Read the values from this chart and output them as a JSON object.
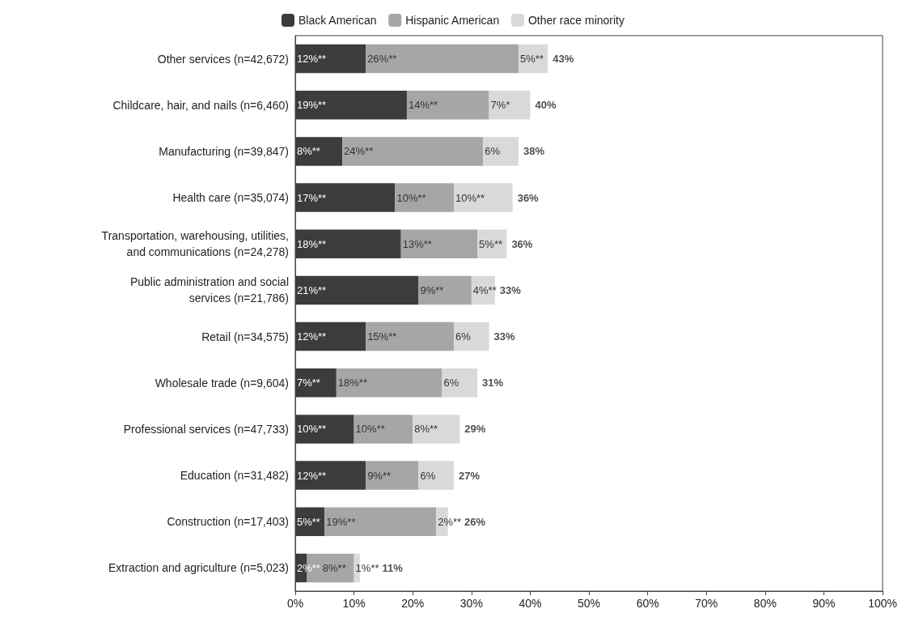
{
  "chart_data": {
    "type": "bar",
    "orientation": "horizontal",
    "stacked": true,
    "legend": "top",
    "grid": false,
    "categories": [
      "Other services (n=42,672)",
      "Childcare, hair, and nails (n=6,460)",
      "Manufacturing (n=39,847)",
      "Health care (n=35,074)",
      "Transportation, warehousing, utilities,\nand communications (n=24,278)",
      "Public administration and social\nservices (n=21,786)",
      "Retail (n=34,575)",
      "Wholesale trade (n=9,604)",
      "Professional services (n=47,733)",
      "Education (n=31,482)",
      "Construction (n=17,403)",
      "Extraction and agriculture (n=5,023)"
    ],
    "series": [
      {
        "name": "Black American",
        "color": "#3c3c3c",
        "values": [
          12,
          19,
          8,
          17,
          18,
          21,
          12,
          7,
          10,
          12,
          5,
          2
        ],
        "value_labels": [
          "12%**",
          "19%**",
          "8%**",
          "17%**",
          "18%**",
          "21%**",
          "12%**",
          "7%**",
          "10%**",
          "12%**",
          "5%**",
          "2%**"
        ]
      },
      {
        "name": "Hispanic American",
        "color": "#a6a6a6",
        "values": [
          26,
          14,
          24,
          10,
          13,
          9,
          15,
          18,
          10,
          9,
          19,
          8
        ],
        "value_labels": [
          "26%**",
          "14%**",
          "24%**",
          "10%**",
          "13%**",
          "9%**",
          "15%**",
          "18%**",
          "10%**",
          "9%**",
          "19%**",
          "8%**"
        ]
      },
      {
        "name": "Other race minority",
        "color": "#d9d9d9",
        "values": [
          5,
          7,
          6,
          10,
          5,
          4,
          6,
          6,
          8,
          6,
          2,
          1
        ],
        "value_labels": [
          "5%**",
          "7%*",
          "6%",
          "10%**",
          "5%**",
          "4%**",
          "6%",
          "6%",
          "8%**",
          "6%",
          "2%**",
          "1%**"
        ]
      }
    ],
    "totals": [
      "43%",
      "40%",
      "38%",
      "36%",
      "36%",
      "33%",
      "33%",
      "31%",
      "29%",
      "27%",
      "26%",
      "11%"
    ],
    "xlim": [
      0,
      100
    ],
    "xticks": [
      {
        "value": 0,
        "label": "0%"
      },
      {
        "value": 10,
        "label": "10%"
      },
      {
        "value": 20,
        "label": "20%"
      },
      {
        "value": 30,
        "label": "30%"
      },
      {
        "value": 40,
        "label": "40%"
      },
      {
        "value": 50,
        "label": "50%"
      },
      {
        "value": 60,
        "label": "60%"
      },
      {
        "value": 70,
        "label": "70%"
      },
      {
        "value": 80,
        "label": "80%"
      },
      {
        "value": 90,
        "label": "90%"
      },
      {
        "value": 100,
        "label": "100%"
      }
    ]
  }
}
